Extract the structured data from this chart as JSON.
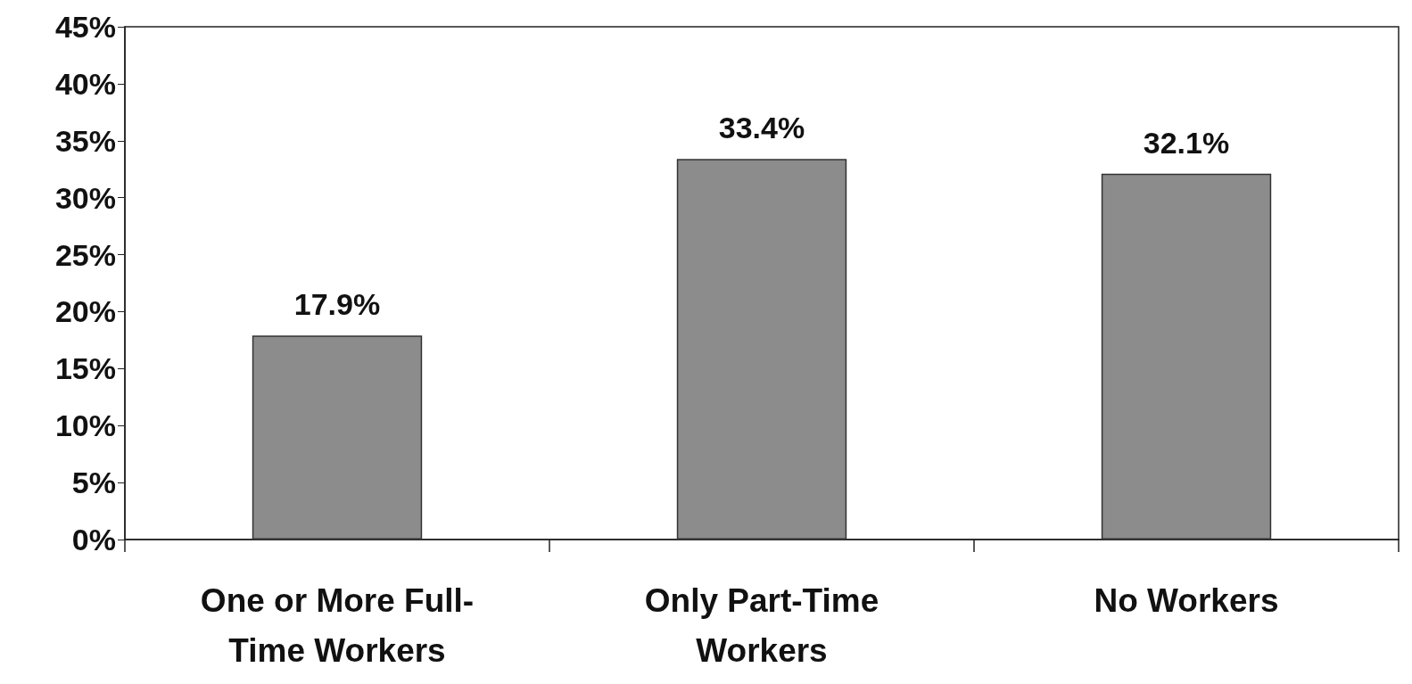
{
  "chart_data": {
    "type": "bar",
    "categories": [
      "One or More Full-\nTime Workers",
      "Only Part-Time\nWorkers",
      "No Workers"
    ],
    "values": [
      17.9,
      33.4,
      32.1
    ],
    "color": "#8c8c8c",
    "value_labels": [
      "17.9%",
      "33.4%",
      "32.1%"
    ],
    "ylim": [
      0,
      45
    ],
    "yticks": [
      {
        "value": 0,
        "label": "0%"
      },
      {
        "value": 5,
        "label": "5%"
      },
      {
        "value": 10,
        "label": "10%"
      },
      {
        "value": 15,
        "label": "15%"
      },
      {
        "value": 20,
        "label": "20%"
      },
      {
        "value": 25,
        "label": "25%"
      },
      {
        "value": 30,
        "label": "30%"
      },
      {
        "value": 35,
        "label": "35%"
      },
      {
        "value": 40,
        "label": "40%"
      },
      {
        "value": 45,
        "label": "45%"
      }
    ],
    "grid": false
  }
}
